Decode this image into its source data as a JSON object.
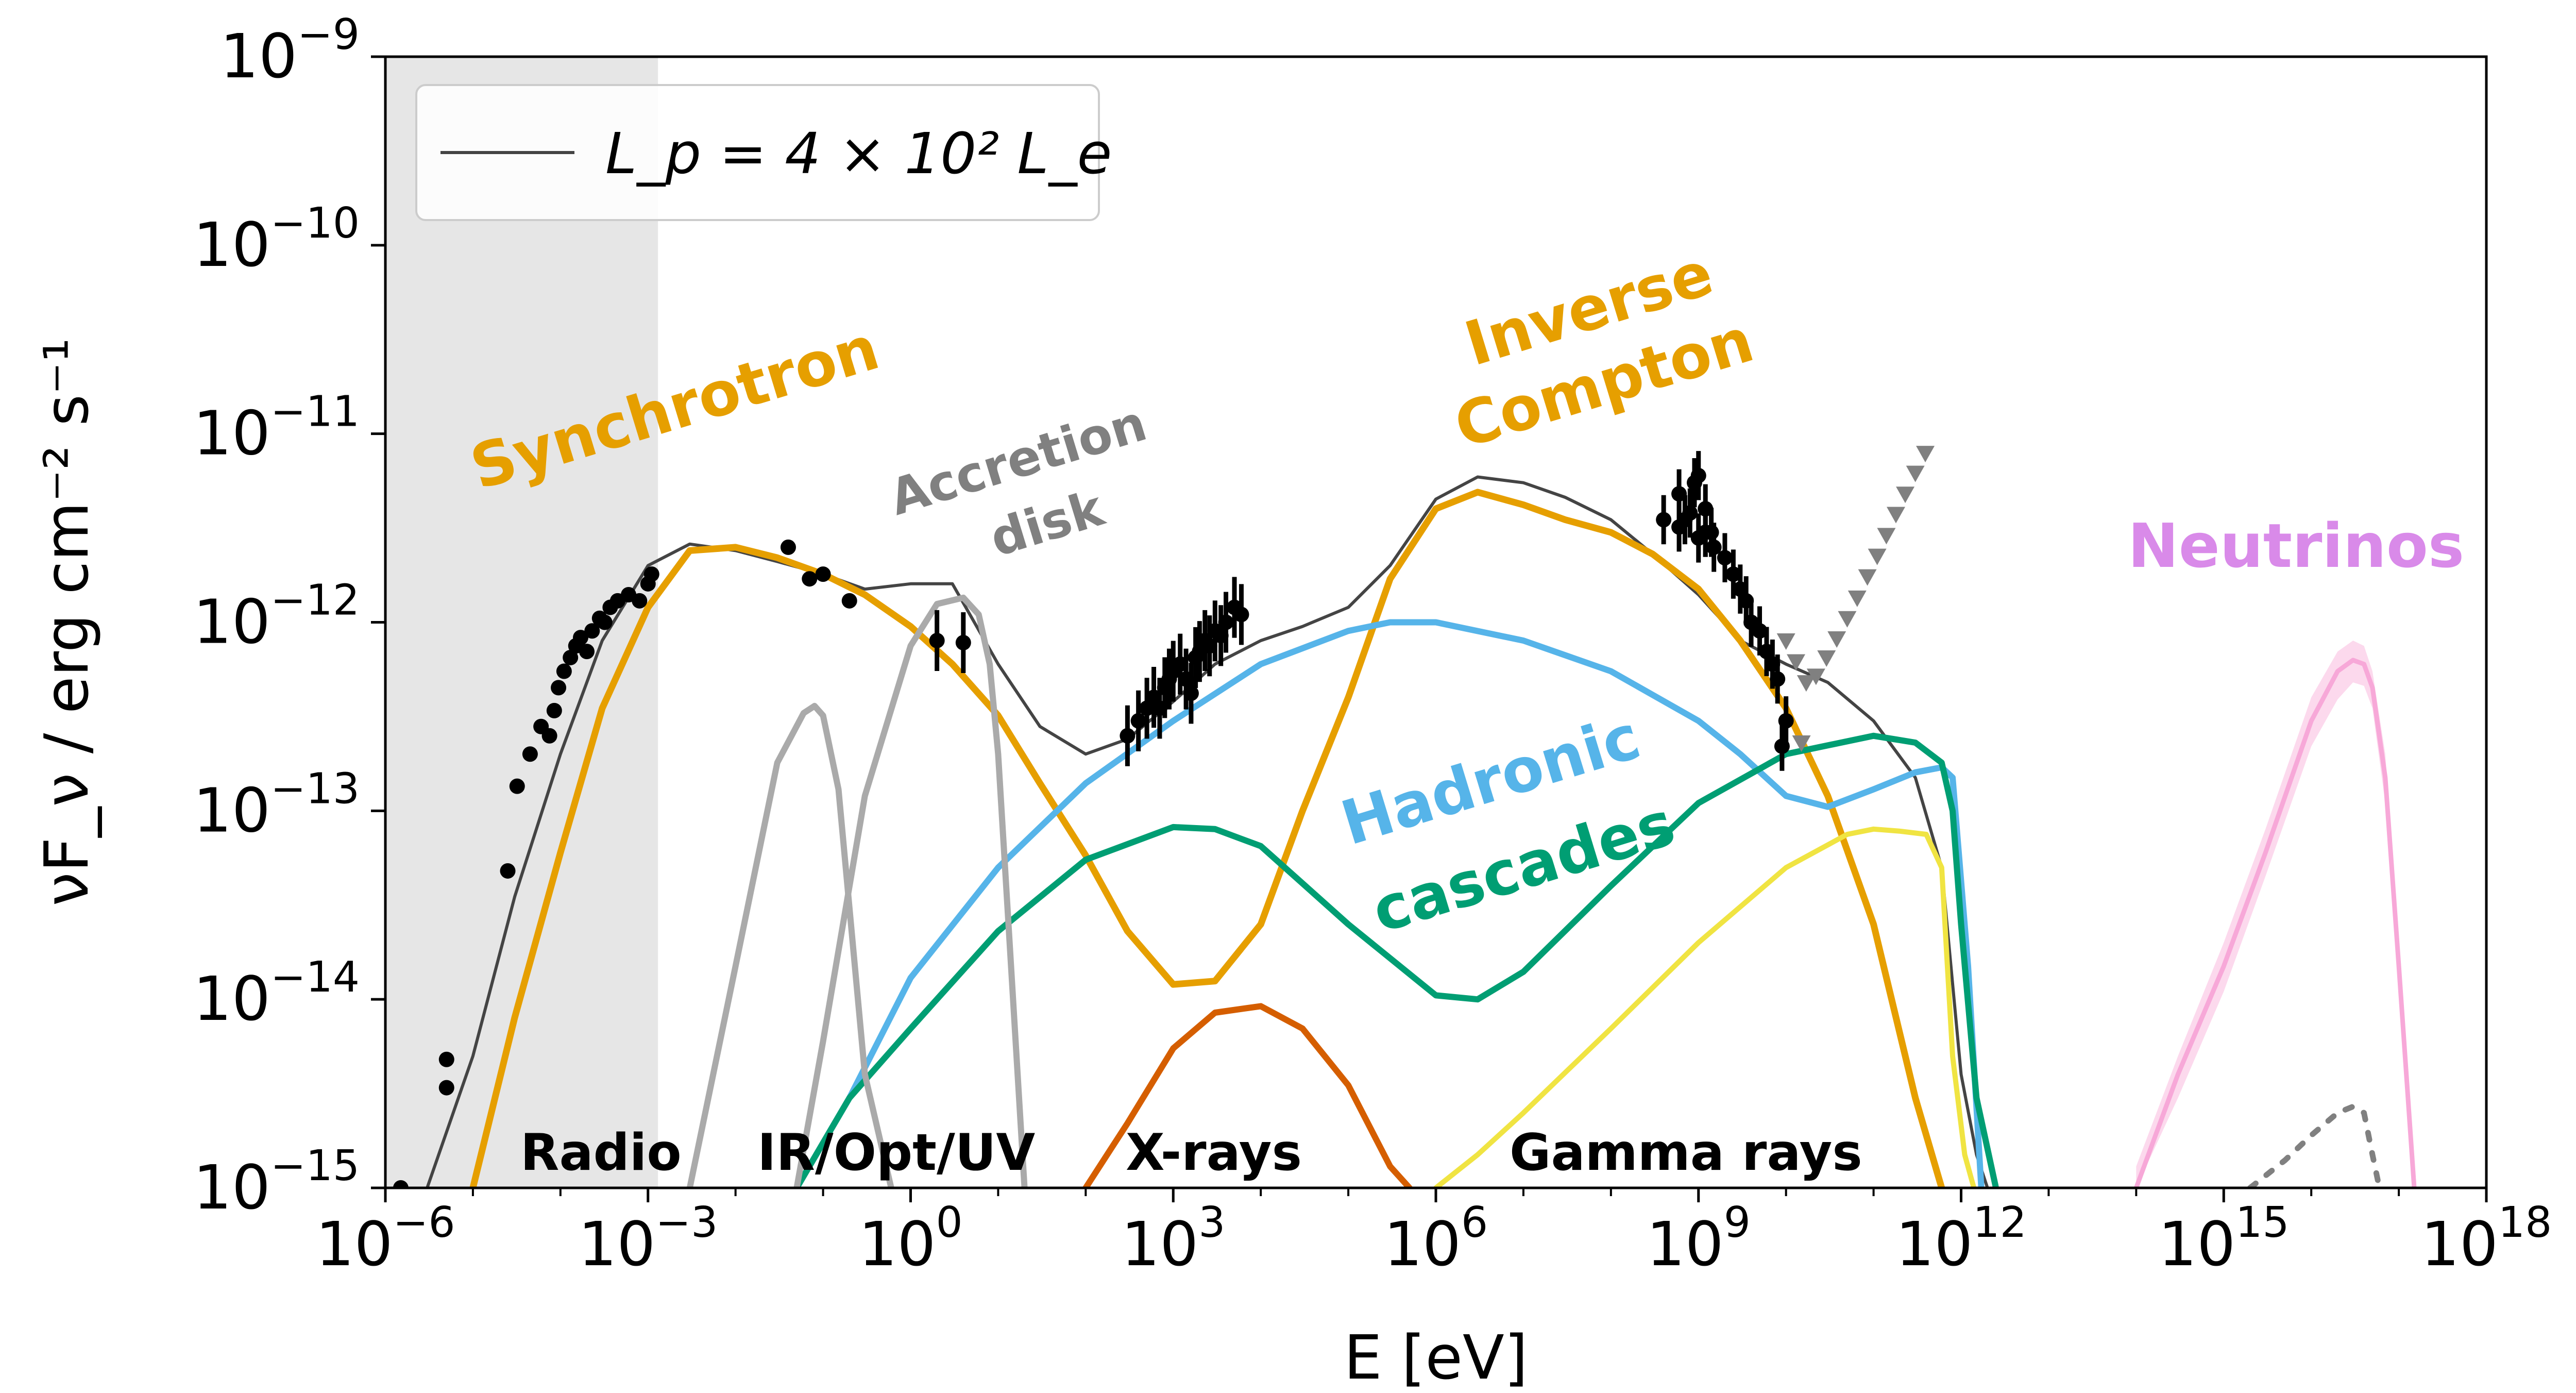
{
  "chart_data": {
    "type": "line",
    "xscale": "log",
    "yscale": "log",
    "xlabel": "E [eV]",
    "ylabel": "νF_ν / erg cm⁻² s⁻¹",
    "xlim": [
      1e-06,
      1e+18
    ],
    "ylim": [
      1e-15,
      1e-09
    ],
    "x_ticks": [
      {
        "base": "10",
        "exp": "−6",
        "value": 1e-06
      },
      {
        "base": "10",
        "exp": "−3",
        "value": 0.001
      },
      {
        "base": "10",
        "exp": "0",
        "value": 1
      },
      {
        "base": "10",
        "exp": "3",
        "value": 1000.0
      },
      {
        "base": "10",
        "exp": "6",
        "value": 1000000.0
      },
      {
        "base": "10",
        "exp": "9",
        "value": 1000000000.0
      },
      {
        "base": "10",
        "exp": "12",
        "value": 1000000000000.0
      },
      {
        "base": "10",
        "exp": "15",
        "value": 1000000000000000.0
      },
      {
        "base": "10",
        "exp": "18",
        "value": 1e+18
      }
    ],
    "y_ticks": [
      {
        "base": "10",
        "exp": "−15",
        "value": 1e-15
      },
      {
        "base": "10",
        "exp": "−14",
        "value": 1e-14
      },
      {
        "base": "10",
        "exp": "−13",
        "value": 1e-13
      },
      {
        "base": "10",
        "exp": "−12",
        "value": 1e-12
      },
      {
        "base": "10",
        "exp": "−11",
        "value": 1e-11
      },
      {
        "base": "10",
        "exp": "−10",
        "value": 1e-10
      },
      {
        "base": "10",
        "exp": "−9",
        "value": 1e-09
      }
    ],
    "shaded_region": {
      "x": [
        1e-06,
        0.0013
      ],
      "color": "#e6e6e6"
    },
    "legend": {
      "position": "top-left",
      "label": "L_p = 4 × 10² L_e",
      "color": "#444444"
    },
    "region_labels": [
      "Radio",
      "IR/Opt/UV",
      "X-rays",
      "Gamma rays"
    ],
    "annotations": [
      {
        "text": "Synchrotron",
        "color": "#e69f00"
      },
      {
        "text": "Accretion",
        "color": "#808080"
      },
      {
        "text": "disk",
        "color": "#808080"
      },
      {
        "text": "Inverse",
        "color": "#e69f00"
      },
      {
        "text": "Compton",
        "color": "#e69f00"
      },
      {
        "text": "Hadronic",
        "color": "#56b4e9"
      },
      {
        "text": "cascades",
        "color": "#009e73"
      },
      {
        "text": "Neutrinos",
        "color": "#d98ae9"
      }
    ],
    "series": [
      {
        "key": "total",
        "color": "#444444",
        "width": 6,
        "x": [
          3e-06,
          1e-05,
          3e-05,
          0.0001,
          0.0003,
          0.001,
          0.003,
          0.01,
          0.03,
          0.1,
          0.3,
          1,
          3,
          10,
          30,
          100,
          300,
          1000,
          3000,
          10000.0,
          30000.0,
          100000.0,
          300000.0,
          1000000.0,
          3000000.0,
          10000000.0,
          30000000.0,
          100000000.0,
          300000000.0,
          1000000000.0,
          3000000000.0,
          10000000000.0,
          30000000000.0,
          100000000000.0,
          300000000000.0,
          600000000000.0,
          1000000000000.0,
          1500000000000.0,
          2000000000000.0
        ],
        "y": [
          1e-15,
          5e-15,
          3.5e-14,
          2e-13,
          8e-13,
          2e-12,
          2.6e-12,
          2.4e-12,
          2.1e-12,
          1.8e-12,
          1.5e-12,
          1.6e-12,
          1.6e-12,
          6e-13,
          2.8e-13,
          2e-13,
          2.4e-13,
          3.8e-13,
          6e-13,
          8e-13,
          9.5e-13,
          1.2e-12,
          2e-12,
          4.5e-12,
          5.9e-12,
          5.5e-12,
          4.6e-12,
          3.5e-12,
          2.3e-12,
          1.4e-12,
          8e-13,
          6e-13,
          4.8e-13,
          3e-13,
          1.5e-13,
          5e-14,
          4e-15,
          1.5e-15,
          1e-15
        ]
      },
      {
        "key": "synchrotron",
        "color": "#e69f00",
        "width": 13,
        "x": [
          1e-05,
          3e-05,
          0.0001,
          0.0003,
          0.001,
          0.003,
          0.01,
          0.03,
          0.1,
          0.3,
          1,
          3,
          10,
          30,
          100,
          300,
          1000,
          3000,
          10000.0,
          30000.0,
          100000.0,
          300000.0,
          1000000.0,
          3000000.0,
          10000000.0,
          30000000.0,
          100000000.0,
          300000000.0,
          1000000000.0,
          3000000000.0,
          10000000000.0,
          30000000000.0,
          100000000000.0,
          300000000000.0,
          600000000000.0
        ],
        "y": [
          1e-15,
          8e-15,
          6e-14,
          3.5e-13,
          1.2e-12,
          2.4e-12,
          2.5e-12,
          2.2e-12,
          1.8e-12,
          1.4e-12,
          9.5e-13,
          6e-13,
          3.2e-13,
          1.4e-13,
          5.8e-14,
          2.3e-14,
          1.2e-14,
          1.25e-14,
          2.5e-14,
          1e-13,
          4e-13,
          1.7e-12,
          4e-12,
          4.9e-12,
          4.2e-12,
          3.5e-12,
          3e-12,
          2.3e-12,
          1.5e-12,
          8e-13,
          3.5e-13,
          1.2e-13,
          2.5e-14,
          3e-15,
          1e-15
        ]
      },
      {
        "key": "hadronic",
        "color": "#56b4e9",
        "width": 12,
        "x": [
          0.05,
          0.2,
          1,
          10,
          100,
          1000,
          10000.0,
          100000.0,
          300000.0,
          1000000.0,
          10000000.0,
          100000000.0,
          1000000000.0,
          3000000000.0,
          10000000000.0,
          30000000000.0,
          100000000000.0,
          300000000000.0,
          600000000000.0,
          800000000000.0,
          1200000000000.0,
          1700000000000.0
        ],
        "y": [
          1e-15,
          3e-15,
          1.3e-14,
          5e-14,
          1.4e-13,
          3e-13,
          6e-13,
          9e-13,
          1e-12,
          1e-12,
          8e-13,
          5.5e-13,
          3e-13,
          2e-13,
          1.2e-13,
          1.05e-13,
          1.3e-13,
          1.6e-13,
          1.7e-13,
          1.5e-13,
          1.5e-14,
          1e-15
        ]
      },
      {
        "key": "cascades",
        "color": "#009e73",
        "width": 12,
        "x": [
          0.05,
          0.2,
          1,
          10,
          100,
          1000,
          3000,
          10000.0,
          100000.0,
          1000000.0,
          3000000.0,
          10000000.0,
          100000000.0,
          1000000000.0,
          10000000000.0,
          100000000000.0,
          300000000000.0,
          600000000000.0,
          800000000000.0,
          1000000000000.0,
          1500000000000.0,
          2500000000000.0
        ],
        "y": [
          1e-15,
          3e-15,
          7e-15,
          2.3e-14,
          5.5e-14,
          8.2e-14,
          8e-14,
          6.5e-14,
          2.5e-14,
          1.05e-14,
          1e-14,
          1.4e-14,
          4e-14,
          1.1e-13,
          2e-13,
          2.5e-13,
          2.3e-13,
          1.8e-13,
          1e-13,
          2.5e-14,
          3e-15,
          1e-15
        ]
      },
      {
        "key": "pion_gamma",
        "color": "#f0e442",
        "width": 10,
        "x": [
          1000000.0,
          3000000.0,
          10000000.0,
          100000000.0,
          1000000000.0,
          10000000000.0,
          50000000000.0,
          100000000000.0,
          200000000000.0,
          400000000000.0,
          600000000000.0,
          800000000000.0,
          1100000000000.0,
          1400000000000.0
        ],
        "y": [
          1e-15,
          1.5e-15,
          2.5e-15,
          7e-15,
          2e-14,
          5e-14,
          7.5e-14,
          8e-14,
          7.8e-14,
          7.5e-14,
          5e-14,
          5e-15,
          1.5e-15,
          1e-15
        ]
      },
      {
        "key": "xray_bump",
        "color": "#d55e00",
        "width": 12,
        "x": [
          100,
          300,
          1000,
          3000,
          10000.0,
          30000.0,
          100000.0,
          300000.0,
          500000.0
        ],
        "y": [
          1e-15,
          2.2e-15,
          5.5e-15,
          8.5e-15,
          9.2e-15,
          7e-15,
          3.5e-15,
          1.3e-15,
          1e-15
        ]
      },
      {
        "key": "ir_bump",
        "color": "#aaaaaa",
        "width": 12,
        "x": [
          0.003,
          0.01,
          0.03,
          0.06,
          0.08,
          0.1,
          0.15,
          0.3,
          0.6
        ],
        "y": [
          1e-15,
          1.5e-14,
          1.8e-13,
          3.3e-13,
          3.6e-13,
          3.2e-13,
          1.3e-13,
          4e-15,
          1e-15
        ]
      },
      {
        "key": "disk_bump",
        "color": "#aaaaaa",
        "width": 12,
        "x": [
          0.05,
          0.1,
          0.3,
          1,
          2,
          4,
          6,
          8,
          10,
          20
        ],
        "y": [
          1e-15,
          6e-15,
          1.2e-13,
          7.5e-13,
          1.25e-12,
          1.35e-12,
          1.1e-12,
          6e-13,
          2e-13,
          1e-15
        ]
      },
      {
        "key": "neutrinos",
        "color": "#f7a8d8",
        "width": 9,
        "x": [
          100000000000000.0,
          300000000000000.0,
          1000000000000000.0,
          3000000000000000.0,
          1e+16,
          2e+16,
          3e+16,
          4e+16,
          5e+16,
          7e+16,
          1e+17,
          1.5e+17
        ],
        "y": [
          1e-15,
          4e-15,
          1.5e-14,
          6e-14,
          3e-13,
          5.5e-13,
          6.3e-13,
          6e-13,
          4.5e-13,
          1.5e-13,
          1.5e-14,
          1e-15
        ]
      },
      {
        "key": "neutrino_dotted",
        "color": "#808080",
        "width": 11,
        "dash": "14 26",
        "x": [
          2000000000000000.0,
          5000000000000000.0,
          1e+16,
          2e+16,
          3e+16,
          4e+16,
          5e+16,
          6e+16
        ],
        "y": [
          1e-15,
          1.4e-15,
          1.9e-15,
          2.5e-15,
          2.7e-15,
          2.5e-15,
          1.5e-15,
          1e-15
        ]
      }
    ],
    "neutrino_band": {
      "color": "#fbd0e8",
      "x": [
        100000000000000.0,
        300000000000000.0,
        1000000000000000.0,
        3000000000000000.0,
        1e+16,
        2e+16,
        3e+16,
        4e+16,
        5e+16,
        7e+16,
        1e+17,
        1.5e+17
      ],
      "upper": [
        1.3e-15,
        5e-15,
        2e-14,
        8e-14,
        4e-13,
        7e-13,
        8e-13,
        7.5e-13,
        5.5e-13,
        2e-13,
        2e-14,
        1e-15
      ],
      "lower": [
        1e-15,
        3e-15,
        1.1e-14,
        4.5e-14,
        2.2e-13,
        3.9e-13,
        4.8e-13,
        4.6e-13,
        3.5e-13,
        1.1e-13,
        1.1e-14,
        1e-15
      ]
    },
    "data_points": {
      "color": "#000000",
      "x": [
        1.5e-06,
        5e-06,
        5e-06,
        2.5e-05,
        3.2e-05,
        4.5e-05,
        6e-05,
        7.5e-05,
        8.5e-05,
        9.5e-05,
        0.00011,
        0.00013,
        0.00015,
        0.00017,
        0.0002,
        0.00023,
        0.00028,
        0.00032,
        0.00037,
        0.00045,
        0.0006,
        0.0008,
        0.001,
        0.0011,
        0.04,
        0.07,
        0.1,
        0.2,
        2,
        4,
        300,
        400,
        500,
        600,
        700,
        800,
        900,
        1000,
        1200,
        1400,
        1600,
        1800,
        2000,
        2300,
        2600,
        3000,
        3500,
        4000,
        5000,
        6000,
        600000000.0,
        700000000.0,
        800000000.0,
        1000000000.0,
        1200000000.0,
        1500000000.0,
        2000000000.0,
        2500000000.0,
        3000000000.0,
        3500000000.0,
        4000000000.0,
        5000000000.0,
        6000000000.0,
        7000000000.0,
        8000000000.0,
        10000000000.0,
        400000000.0,
        600000000.0,
        900000000.0,
        1400000000.0,
        1000000000.0,
        1200000000.0,
        1200000000.0,
        9000000000.0
      ],
      "y": [
        1e-15,
        4.8e-15,
        3.4e-15,
        4.8e-14,
        1.35e-13,
        2e-13,
        2.8e-13,
        2.5e-13,
        3.4e-13,
        4.5e-13,
        5.5e-13,
        6.5e-13,
        7.5e-13,
        8.3e-13,
        7e-13,
        9e-13,
        1.05e-12,
        1e-12,
        1.2e-12,
        1.3e-12,
        1.4e-12,
        1.3e-12,
        1.6e-12,
        1.8e-12,
        2.5e-12,
        1.7e-12,
        1.8e-12,
        1.3e-12,
        8e-13,
        7.8e-13,
        2.5e-13,
        3e-13,
        3.5e-13,
        4e-13,
        3.5e-13,
        4.5e-13,
        5e-13,
        5.5e-13,
        6e-13,
        5e-13,
        4.2e-13,
        6.5e-13,
        7e-13,
        8e-13,
        7.5e-13,
        9e-13,
        8.5e-13,
        1e-12,
        1.2e-12,
        1.1e-12,
        3.2e-12,
        3.5e-12,
        3.8e-12,
        2.8e-12,
        3e-12,
        2.5e-12,
        2.2e-12,
        1.8e-12,
        1.5e-12,
        1.3e-12,
        1e-12,
        9e-13,
        7e-13,
        6e-13,
        5e-13,
        3e-13,
        3.5e-12,
        4.8e-12,
        5.5e-12,
        3e-12,
        6e-12,
        3e-12,
        4e-12,
        2.2e-13
      ],
      "yerr_factor": 1.45
    },
    "upper_limits": {
      "color": "#808080",
      "x": [
        10000000000.0,
        13000000000.0,
        17000000000.0,
        22000000000.0,
        29000000000.0,
        38000000000.0,
        50000000000.0,
        65000000000.0,
        85000000000.0,
        110000000000.0,
        140000000000.0,
        180000000000.0,
        230000000000.0,
        300000000000.0,
        390000000000.0,
        15000000000.0
      ],
      "y": [
        8e-13,
        6.2e-13,
        4.8e-13,
        5.2e-13,
        6.5e-13,
        8.2e-13,
        1.05e-12,
        1.35e-12,
        1.75e-12,
        2.25e-12,
        2.9e-12,
        3.75e-12,
        4.8e-12,
        6.2e-12,
        7.9e-12,
        2.3e-13
      ]
    }
  }
}
